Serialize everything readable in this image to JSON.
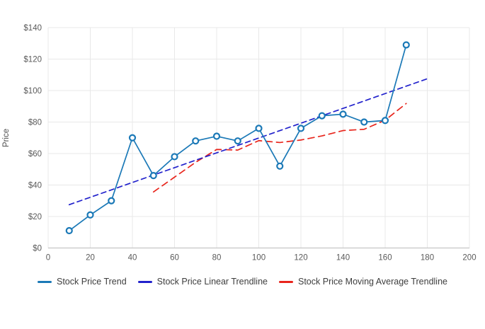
{
  "chart_data": {
    "type": "line",
    "title": "",
    "xlabel": "",
    "ylabel": "Price",
    "xlim": [
      0,
      200
    ],
    "ylim": [
      0,
      140
    ],
    "grid": true,
    "legend_position": "bottom-center",
    "x_tick_values": [
      0,
      20,
      40,
      60,
      80,
      100,
      120,
      140,
      160,
      180,
      200
    ],
    "x_tick_labels": [
      "0",
      "20",
      "40",
      "60",
      "80",
      "100",
      "120",
      "140",
      "160",
      "180",
      "200"
    ],
    "y_tick_values": [
      0,
      20,
      40,
      60,
      80,
      100,
      120,
      140
    ],
    "y_tick_labels": [
      "$0",
      "$20",
      "$40",
      "$60",
      "$80",
      "$100",
      "$120",
      "$140"
    ],
    "series": [
      {
        "name": "Stock Price Trend",
        "style": "solid",
        "markers": true,
        "color": "#1b79b7",
        "x": [
          10,
          20,
          30,
          40,
          50,
          60,
          70,
          80,
          90,
          100,
          110,
          120,
          130,
          140,
          150,
          160,
          170
        ],
        "values": [
          11,
          21,
          30,
          70,
          46,
          58,
          68,
          71,
          68,
          76,
          52,
          76,
          84,
          85,
          80,
          81,
          129
        ]
      },
      {
        "name": "Stock Price Linear Trendline",
        "style": "dashed",
        "markers": false,
        "color": "#2222cc",
        "x": [
          10,
          180
        ],
        "values": [
          27.5,
          107.5
        ]
      },
      {
        "name": "Stock Price Moving Average Trendline",
        "style": "dashed",
        "markers": false,
        "color": "#e8251c",
        "x": [
          50,
          60,
          70,
          80,
          90,
          100,
          110,
          120,
          130,
          140,
          150,
          160,
          170
        ],
        "values": [
          35.6,
          45,
          54.4,
          62.6,
          62.2,
          68.2,
          67,
          68.6,
          71.2,
          74.6,
          75.4,
          81.2,
          91.8
        ]
      }
    ],
    "colors": {
      "grid": "#e8e8e8",
      "axis_line": "#c6c6c6",
      "tick_text": "#5a5a5a",
      "legend_text": "#3d3d3d",
      "background": "#ffffff"
    }
  }
}
